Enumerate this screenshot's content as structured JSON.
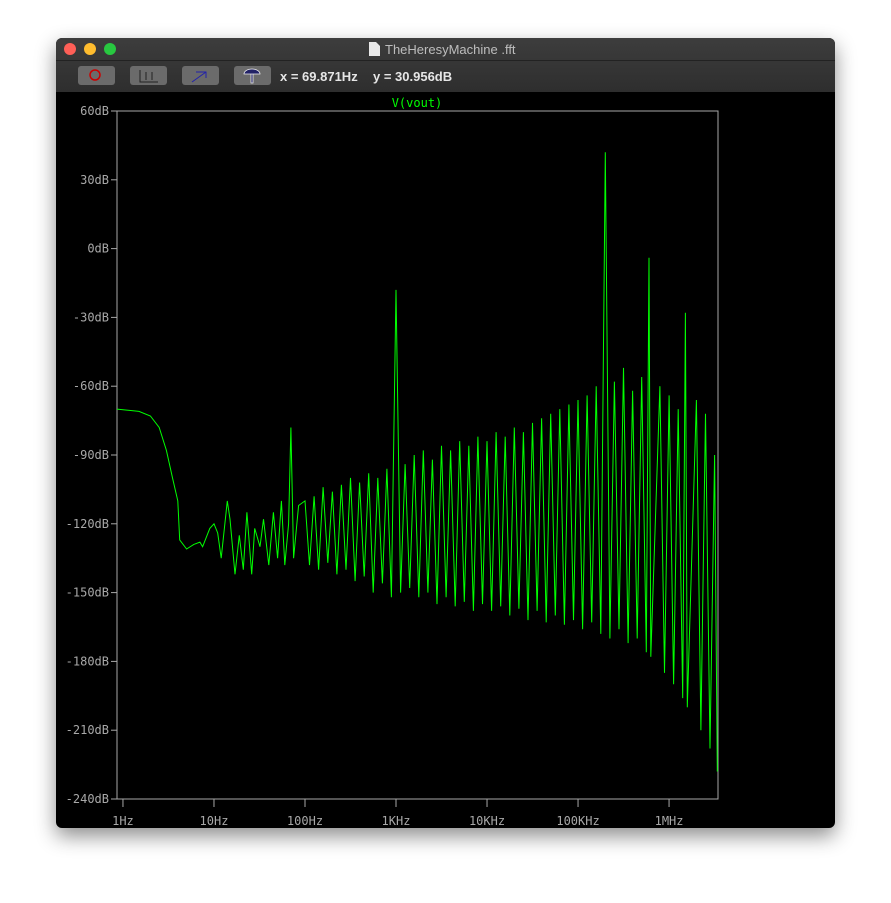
{
  "window": {
    "title": "TheHeresyMachine .fft"
  },
  "toolbar": {
    "cursor_x": "x = 69.871Hz",
    "cursor_y": "y = 30.956dB"
  },
  "chart_data": {
    "type": "line",
    "log_x": true,
    "grid": false,
    "xlim": [
      0.86,
      3450000
    ],
    "ylim": [
      -240,
      60
    ],
    "xticks": [
      {
        "value": 1,
        "label": "1Hz"
      },
      {
        "value": 10,
        "label": "10Hz"
      },
      {
        "value": 100,
        "label": "100Hz"
      },
      {
        "value": 1000,
        "label": "1KHz"
      },
      {
        "value": 10000,
        "label": "10KHz"
      },
      {
        "value": 100000,
        "label": "100KHz"
      },
      {
        "value": 1000000,
        "label": "1MHz"
      }
    ],
    "yticks": [
      {
        "value": 60,
        "label": "60dB"
      },
      {
        "value": 30,
        "label": "30dB"
      },
      {
        "value": 0,
        "label": "0dB"
      },
      {
        "value": -30,
        "label": "-30dB"
      },
      {
        "value": -60,
        "label": "-60dB"
      },
      {
        "value": -90,
        "label": "-90dB"
      },
      {
        "value": -120,
        "label": "-120dB"
      },
      {
        "value": -150,
        "label": "-150dB"
      },
      {
        "value": -180,
        "label": "-180dB"
      },
      {
        "value": -210,
        "label": "-210dB"
      },
      {
        "value": -240,
        "label": "-240dB"
      }
    ],
    "series": [
      {
        "name": "V(vout)",
        "color": "#00ff00",
        "x": [
          0.86,
          1.5,
          2,
          2.5,
          3,
          3.5,
          4,
          4.2,
          5,
          6,
          7,
          7.5,
          9,
          10,
          11,
          12,
          14,
          15,
          17,
          19,
          21,
          23,
          26,
          28,
          32,
          35,
          40,
          45,
          50,
          55,
          60,
          66,
          70,
          75,
          85,
          100,
          112,
          126,
          141,
          158,
          178,
          200,
          224,
          251,
          282,
          316,
          355,
          398,
          447,
          501,
          562,
          631,
          708,
          794,
          891,
          1000,
          1122,
          1259,
          1413,
          1585,
          1778,
          1995,
          2239,
          2512,
          2818,
          3162,
          3548,
          3981,
          4467,
          5012,
          5623,
          6310,
          7079,
          7943,
          8913,
          10000,
          11220,
          12589,
          14125,
          15849,
          17783,
          19953,
          22387,
          25119,
          28184,
          31623,
          35481,
          39811,
          44668,
          50119,
          56234,
          63096,
          70795,
          79433,
          89125,
          100000,
          112202,
          125893,
          141254,
          158489,
          177828,
          199526,
          223872,
          251189,
          281838,
          316228,
          354813,
          398107,
          446684,
          501187,
          562341,
          602560,
          630957,
          794328,
          891251,
          1000000,
          1122018,
          1258925,
          1412538,
          1513561,
          1584893,
          1995262,
          2238721,
          2511886,
          2818383,
          3162278,
          3388442
        ],
        "values": [
          -70,
          -71,
          -73,
          -78,
          -88,
          -100,
          -110,
          -127,
          -131,
          -129,
          -128,
          -130,
          -122,
          -120,
          -124,
          -135,
          -110,
          -118,
          -142,
          -125,
          -140,
          -115,
          -142,
          -122,
          -130,
          -118,
          -138,
          -115,
          -135,
          -110,
          -138,
          -120,
          -78,
          -135,
          -112,
          -110,
          -138,
          -108,
          -140,
          -104,
          -137,
          -106,
          -142,
          -103,
          -140,
          -100,
          -145,
          -102,
          -143,
          -98,
          -150,
          -100,
          -146,
          -96,
          -152,
          -18,
          -150,
          -94,
          -148,
          -90,
          -152,
          -88,
          -150,
          -92,
          -155,
          -86,
          -152,
          -88,
          -156,
          -84,
          -154,
          -86,
          -158,
          -82,
          -155,
          -84,
          -158,
          -80,
          -156,
          -82,
          -160,
          -78,
          -157,
          -80,
          -162,
          -76,
          -158,
          -74,
          -163,
          -72,
          -160,
          -70,
          -164,
          -68,
          -162,
          -66,
          -166,
          -64,
          -163,
          -60,
          -168,
          42,
          -170,
          -58,
          -166,
          -52,
          -172,
          -62,
          -170,
          -56,
          -176,
          -4,
          -178,
          -60,
          -185,
          -64,
          -190,
          -70,
          -196,
          -28,
          -200,
          -66,
          -210,
          -72,
          -218,
          -90,
          -228
        ]
      }
    ]
  }
}
